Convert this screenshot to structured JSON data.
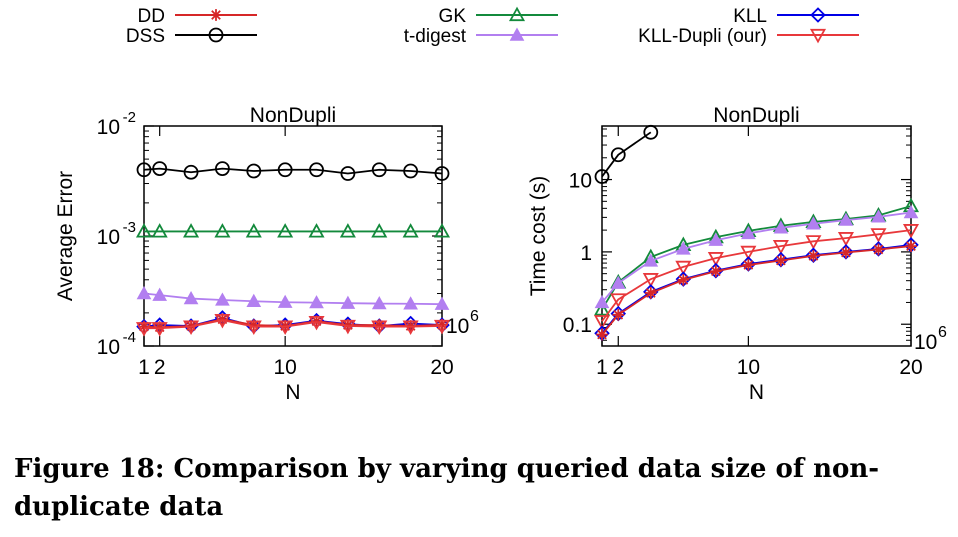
{
  "legend": {
    "items": [
      {
        "label": "DD",
        "color": "#d62728",
        "marker": "star"
      },
      {
        "label": "DSS",
        "color": "#000000",
        "marker": "circle"
      },
      {
        "label": "GK",
        "color": "#138a3c",
        "marker": "triangle"
      },
      {
        "label": "t-digest",
        "color": "#b27ff0",
        "marker": "filled-triangle"
      },
      {
        "label": "KLL",
        "color": "#0000e6",
        "marker": "diamond"
      },
      {
        "label": "KLL-Dupli (our)",
        "color": "#e8383b",
        "marker": "inverted-triangle"
      }
    ]
  },
  "chart_data": [
    {
      "type": "line",
      "title": "NonDupli",
      "xlabel": "N",
      "ylabel": "Average Error",
      "x_multiplier_label": "10",
      "x_multiplier_exp": "6",
      "xlim": [
        1,
        20
      ],
      "ylim": [
        0.0001,
        0.01
      ],
      "yscale": "log",
      "xticks": [
        1,
        2,
        10,
        20
      ],
      "yticks": [
        {
          "value": 0.01,
          "base": "10",
          "exp": "-2"
        },
        {
          "value": 0.001,
          "base": "10",
          "exp": "-3"
        },
        {
          "value": 0.0001,
          "base": "10",
          "exp": "-4"
        }
      ],
      "x": [
        1,
        2,
        4,
        6,
        8,
        10,
        12,
        14,
        16,
        18,
        20
      ],
      "series": [
        {
          "name": "DSS",
          "values": [
            0.004,
            0.0041,
            0.0038,
            0.0041,
            0.0039,
            0.004,
            0.004,
            0.0037,
            0.004,
            0.0039,
            0.0037
          ]
        },
        {
          "name": "GK",
          "values": [
            0.0011,
            0.0011,
            0.0011,
            0.0011,
            0.0011,
            0.0011,
            0.0011,
            0.0011,
            0.0011,
            0.0011,
            0.0011
          ]
        },
        {
          "name": "t-digest",
          "values": [
            0.0003,
            0.00029,
            0.00027,
            0.000262,
            0.000255,
            0.00025,
            0.000248,
            0.000245,
            0.000243,
            0.000242,
            0.00024
          ]
        },
        {
          "name": "KLL",
          "values": [
            0.00015,
            0.000155,
            0.000152,
            0.00018,
            0.000152,
            0.000155,
            0.00017,
            0.000158,
            0.000152,
            0.00016,
            0.000155
          ]
        },
        {
          "name": "DD",
          "values": [
            0.00015,
            0.000148,
            0.000152,
            0.000175,
            0.000155,
            0.000152,
            0.000168,
            0.000155,
            0.000155,
            0.000152,
            0.000156
          ]
        },
        {
          "name": "KLL-Dupli (our)",
          "values": [
            0.000145,
            0.000145,
            0.00015,
            0.000172,
            0.00015,
            0.00015,
            0.000165,
            0.000152,
            0.00015,
            0.00015,
            0.000152
          ]
        }
      ]
    },
    {
      "type": "line",
      "title": "NonDupli",
      "xlabel": "N",
      "ylabel": "Time cost (s)",
      "x_multiplier_label": "10",
      "x_multiplier_exp": "6",
      "xlim": [
        1,
        20
      ],
      "ylim": [
        0.05,
        55
      ],
      "yscale": "log",
      "xticks": [
        1,
        2,
        10,
        20
      ],
      "yticks": [
        {
          "value": 10,
          "label": "10"
        },
        {
          "value": 1,
          "label": "1"
        },
        {
          "value": 0.1,
          "label": "0.1"
        }
      ],
      "x": [
        1,
        2,
        4,
        6,
        8,
        10,
        12,
        14,
        16,
        18,
        20
      ],
      "series": [
        {
          "name": "DSS",
          "x": [
            1,
            2,
            4
          ],
          "values": [
            11,
            22,
            45
          ]
        },
        {
          "name": "GK",
          "values": [
            0.16,
            0.38,
            0.85,
            1.25,
            1.6,
            1.95,
            2.3,
            2.6,
            2.85,
            3.2,
            4.3
          ]
        },
        {
          "name": "t-digest",
          "values": [
            0.2,
            0.37,
            0.75,
            1.1,
            1.45,
            1.8,
            2.15,
            2.45,
            2.75,
            3.05,
            3.5
          ]
        },
        {
          "name": "KLL-Dupli (our)",
          "values": [
            0.11,
            0.22,
            0.42,
            0.62,
            0.82,
            1.0,
            1.2,
            1.4,
            1.55,
            1.75,
            2.0
          ]
        },
        {
          "name": "KLL",
          "values": [
            0.075,
            0.14,
            0.28,
            0.42,
            0.55,
            0.68,
            0.78,
            0.9,
            1.0,
            1.1,
            1.25
          ]
        },
        {
          "name": "DD",
          "values": [
            0.072,
            0.135,
            0.27,
            0.41,
            0.54,
            0.66,
            0.76,
            0.88,
            0.98,
            1.08,
            1.2
          ]
        }
      ]
    }
  ],
  "caption": {
    "text": "Figure 18: Comparison by varying queried data size of non-duplicate data"
  }
}
